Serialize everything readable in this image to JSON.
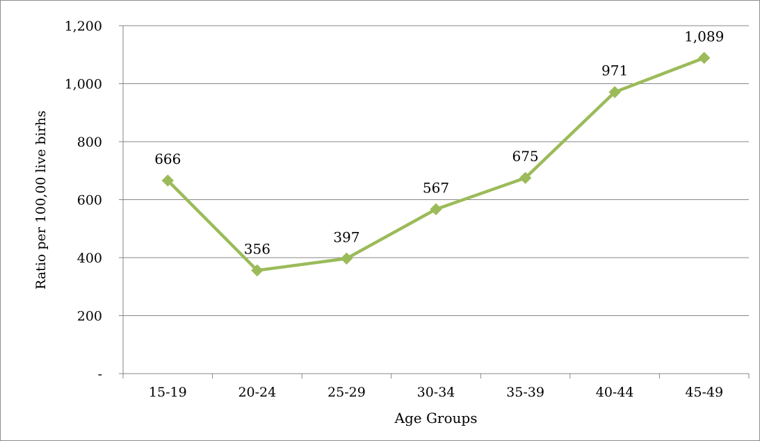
{
  "chart_data": {
    "type": "line",
    "title": "",
    "xlabel": "Age Groups",
    "ylabel": "Ratio per 100,00 live birhs",
    "categories": [
      "15-19",
      "20-24",
      "25-29",
      "30-34",
      "35-39",
      "40-44",
      "45-49"
    ],
    "series": [
      {
        "values": [
          666,
          356,
          397,
          567,
          675,
          971,
          1089
        ]
      }
    ],
    "data_labels": [
      "666",
      "356",
      "397",
      "567",
      "675",
      "971",
      "1,089"
    ],
    "ylim": [
      0,
      1200
    ],
    "yticks": [
      0,
      200,
      400,
      600,
      800,
      1000,
      1200
    ],
    "ytick_labels": [
      "-",
      "200",
      "400",
      "600",
      "800",
      "1,000",
      "1,200"
    ],
    "grid": "horizontal",
    "legend": "none",
    "colors": {
      "line": "#9BBB59",
      "grid": "#868686",
      "axis": "#868686",
      "text": "#000000"
    }
  }
}
